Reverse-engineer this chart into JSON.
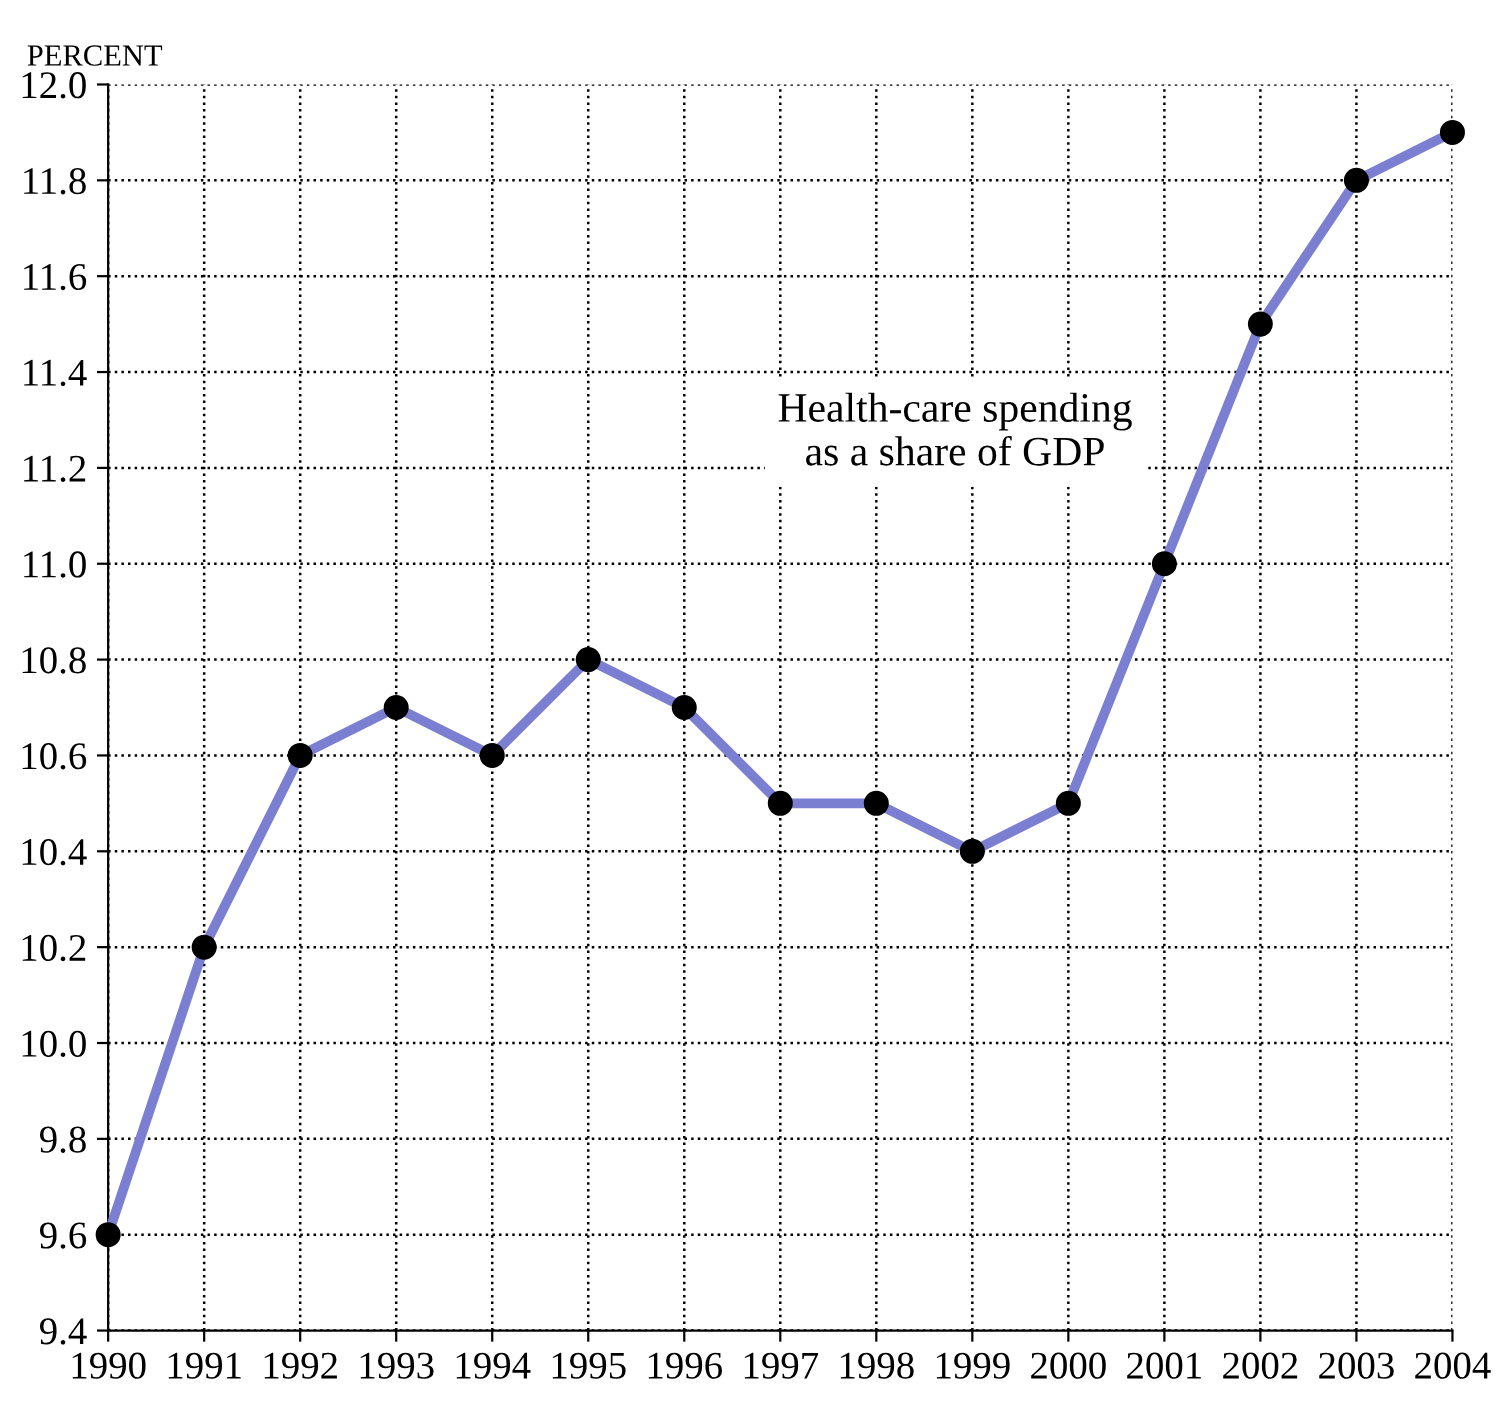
{
  "chart_data": {
    "type": "line",
    "ylabel": "PERCENT",
    "annotations": [
      "Health-care spending\nas a share of GDP"
    ],
    "x": [
      1990,
      1991,
      1992,
      1993,
      1994,
      1995,
      1996,
      1997,
      1998,
      1999,
      2000,
      2001,
      2002,
      2003,
      2004
    ],
    "series": [
      {
        "color": "#7b7fd1",
        "values": [
          9.6,
          10.2,
          10.6,
          10.7,
          10.6,
          10.8,
          10.7,
          10.5,
          10.5,
          10.4,
          10.5,
          11.0,
          11.5,
          11.8,
          11.9
        ]
      }
    ],
    "xlim": [
      1990,
      2004
    ],
    "xticks": [
      1990,
      1991,
      1992,
      1993,
      1994,
      1995,
      1996,
      1997,
      1998,
      1999,
      2000,
      2001,
      2002,
      2003,
      2004
    ],
    "ylim": [
      9.4,
      12.0
    ],
    "yticks": [
      {
        "value": 9.4,
        "label": "9.4"
      },
      {
        "value": 9.6,
        "label": "9.6"
      },
      {
        "value": 9.8,
        "label": "9.8"
      },
      {
        "value": 10.0,
        "label": "10.0"
      },
      {
        "value": 10.2,
        "label": "10.2"
      },
      {
        "value": 10.4,
        "label": "10.4"
      },
      {
        "value": 10.6,
        "label": "10.6"
      },
      {
        "value": 10.8,
        "label": "10.8"
      },
      {
        "value": 11.0,
        "label": "11.0"
      },
      {
        "value": 11.2,
        "label": "11.2"
      },
      {
        "value": 11.4,
        "label": "11.4"
      },
      {
        "value": 11.6,
        "label": "11.6"
      },
      {
        "value": 11.8,
        "label": "11.8"
      },
      {
        "value": 12.0,
        "label": "12.0"
      }
    ],
    "grid": true,
    "marker": "circle",
    "line_style": "solid"
  }
}
